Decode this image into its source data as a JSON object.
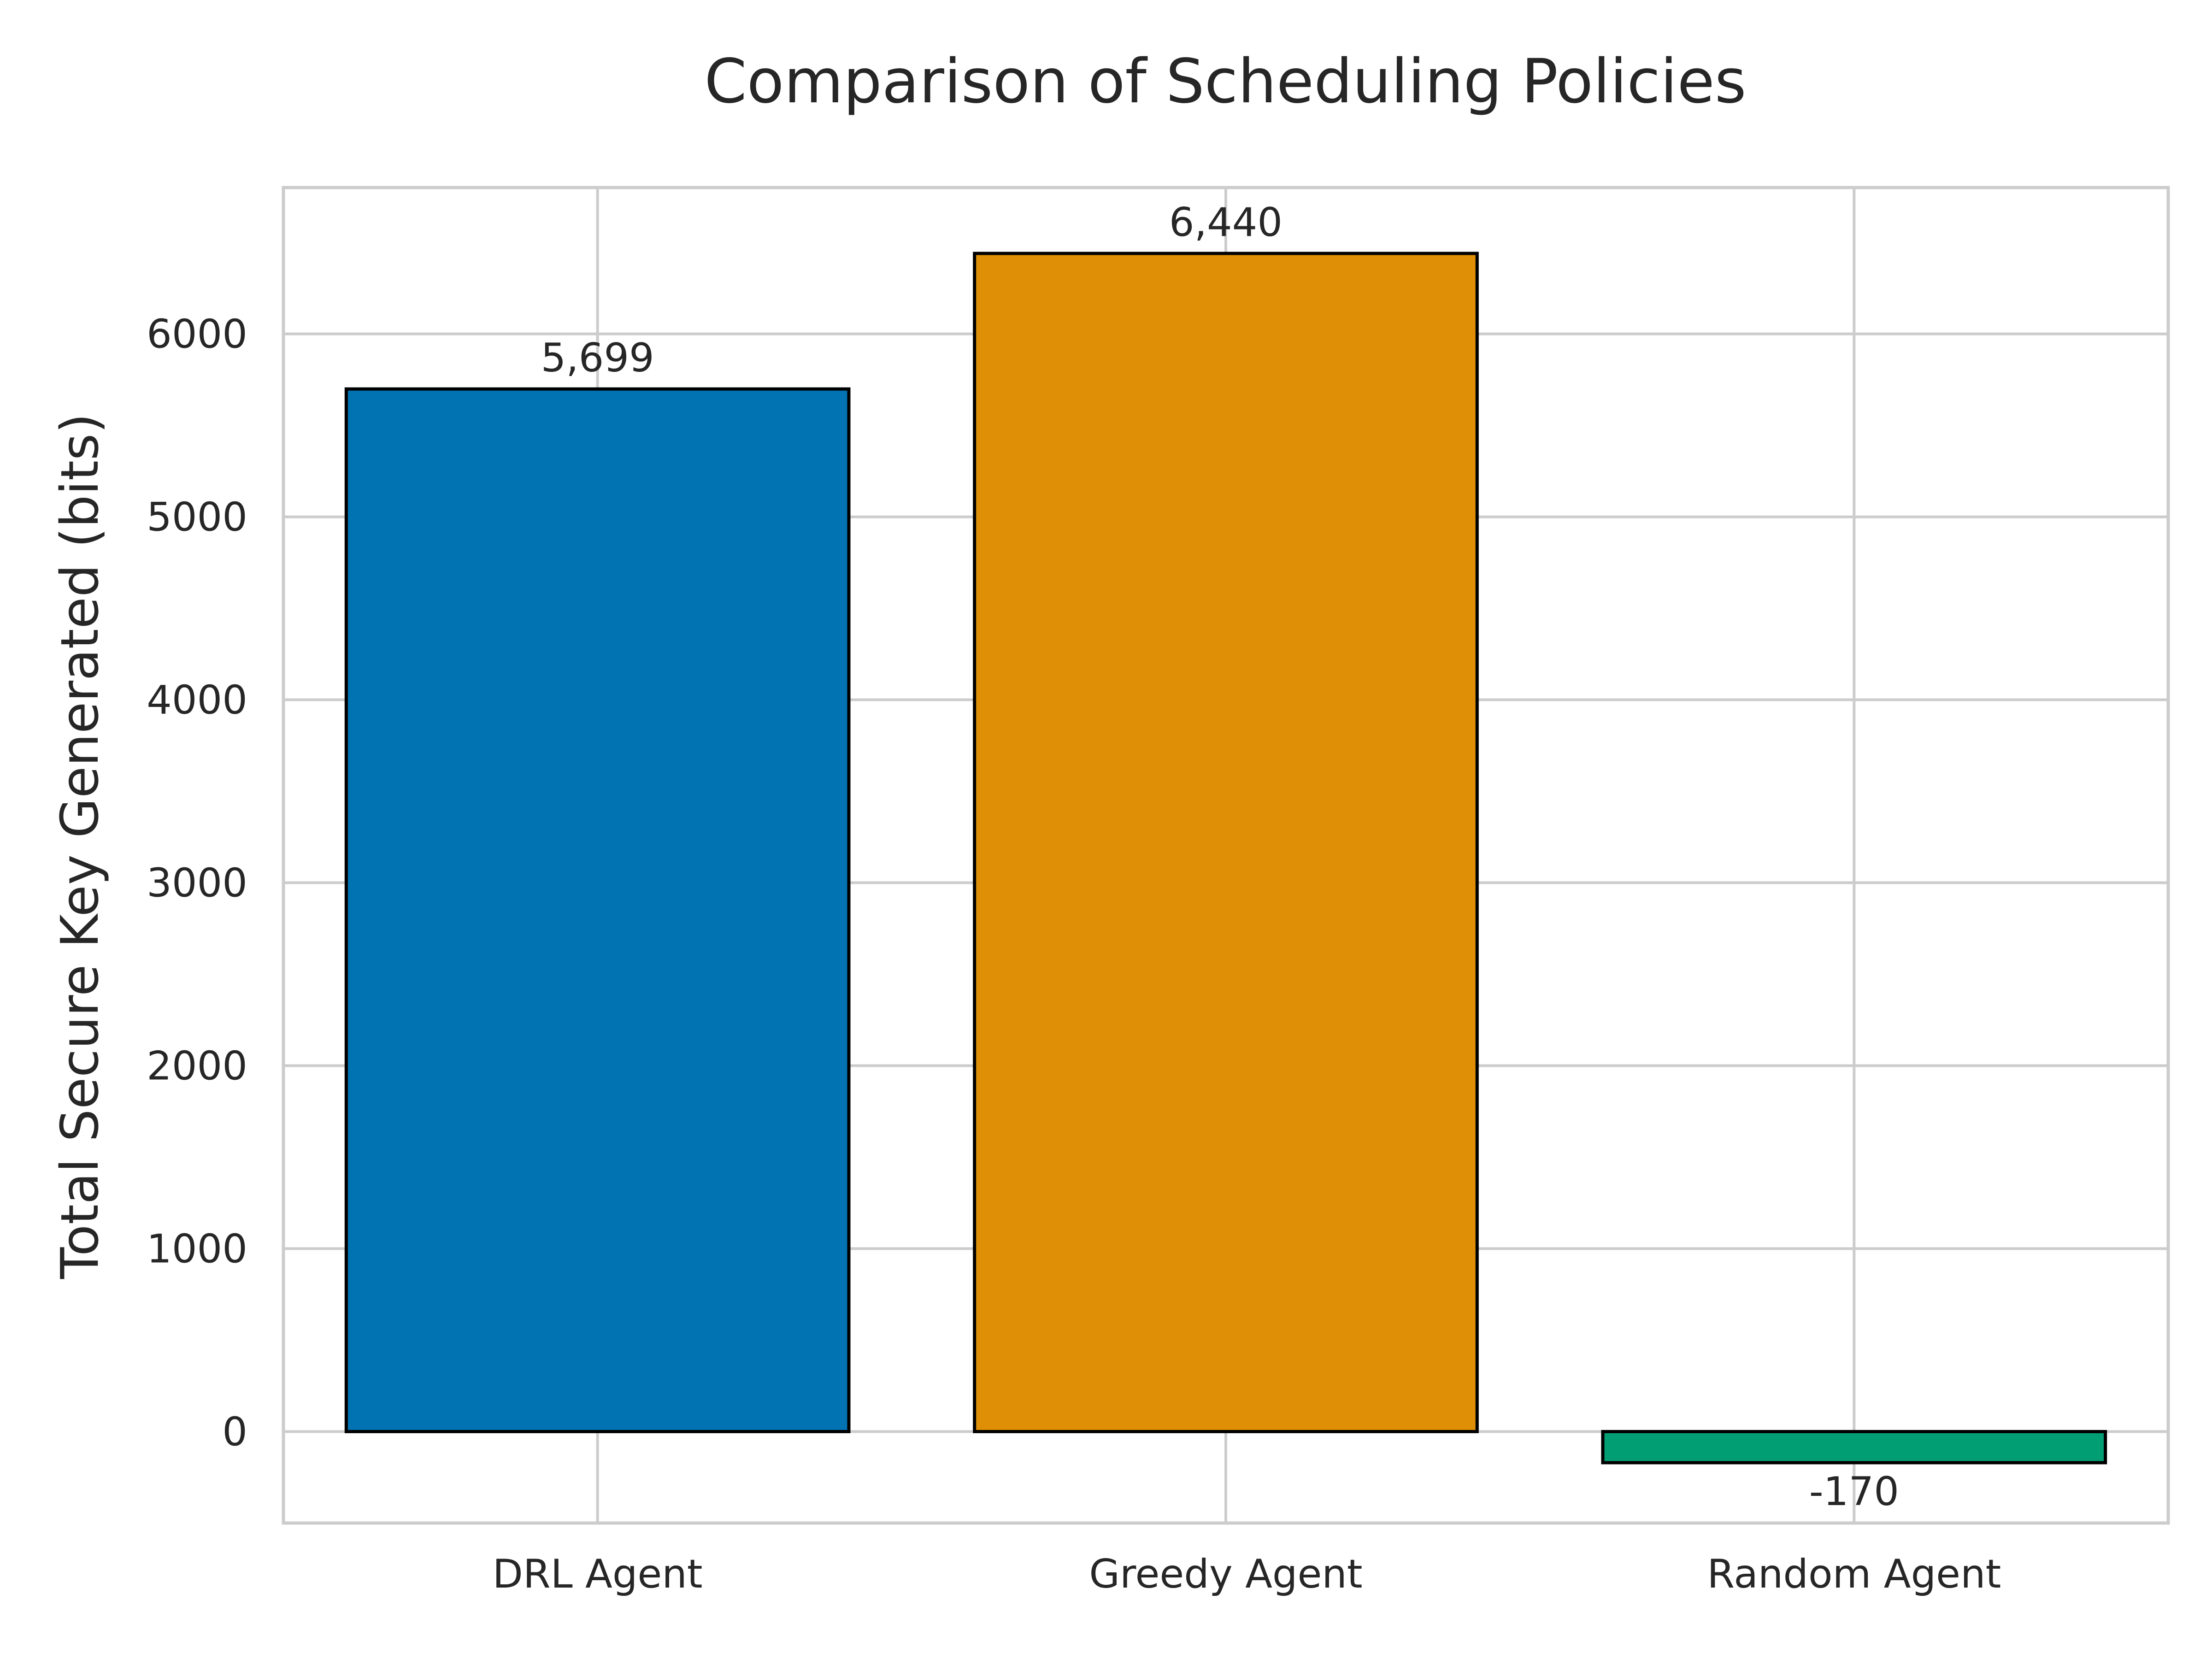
{
  "chart_data": {
    "type": "bar",
    "title": "Comparison of Scheduling Policies",
    "xlabel": "",
    "ylabel": "Total Secure Key Generated (bits)",
    "categories": [
      "DRL Agent",
      "Greedy Agent",
      "Random Agent"
    ],
    "values": [
      5699,
      6440,
      -170
    ],
    "value_labels": [
      "5,699",
      "6,440",
      "-170"
    ],
    "colors": [
      "#0173b2",
      "#de8f05",
      "#029e73"
    ],
    "edge_color": "#000000",
    "grid_color": "#cccccc",
    "spine_color": "#cccccc",
    "ylim": [
      -500,
      6800
    ],
    "yticks": [
      0,
      1000,
      2000,
      3000,
      4000,
      5000,
      6000
    ],
    "ytick_labels": [
      "0",
      "1000",
      "2000",
      "3000",
      "4000",
      "5000",
      "6000"
    ],
    "grid": true
  }
}
